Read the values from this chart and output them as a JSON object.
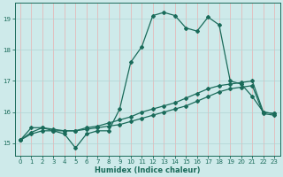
{
  "xlabel": "Humidex (Indice chaleur)",
  "background_color": "#ceeaea",
  "grid_color_h": "#b0d4d4",
  "grid_color_v": "#e8b0b0",
  "line_color": "#1a6b5a",
  "xlim": [
    -0.5,
    23.5
  ],
  "ylim": [
    14.6,
    19.5
  ],
  "yticks": [
    15,
    16,
    17,
    18,
    19
  ],
  "xticks": [
    0,
    1,
    2,
    3,
    4,
    5,
    6,
    7,
    8,
    9,
    10,
    11,
    12,
    13,
    14,
    15,
    16,
    17,
    18,
    19,
    20,
    21,
    22,
    23
  ],
  "series1_x": [
    0,
    1,
    2,
    3,
    4,
    5,
    6,
    7,
    8,
    9,
    10,
    11,
    12,
    13,
    14,
    15,
    16,
    17,
    18,
    19,
    20,
    21,
    22,
    23
  ],
  "series1_y": [
    15.1,
    15.5,
    15.5,
    15.4,
    15.3,
    14.85,
    15.3,
    15.4,
    15.4,
    16.1,
    17.6,
    18.1,
    19.1,
    19.2,
    19.1,
    18.7,
    18.6,
    19.05,
    18.8,
    17.0,
    16.9,
    16.5,
    16.0,
    15.95
  ],
  "series2_x": [
    0,
    1,
    2,
    3,
    4,
    5,
    6,
    7,
    8,
    9,
    10,
    11,
    12,
    13,
    14,
    15,
    16,
    17,
    18,
    19,
    20,
    21,
    22,
    23
  ],
  "series2_y": [
    15.1,
    15.35,
    15.5,
    15.45,
    15.4,
    15.4,
    15.5,
    15.55,
    15.65,
    15.75,
    15.85,
    16.0,
    16.1,
    16.2,
    16.3,
    16.45,
    16.6,
    16.75,
    16.85,
    16.9,
    16.95,
    17.0,
    16.0,
    15.95
  ],
  "series3_x": [
    0,
    1,
    2,
    3,
    4,
    5,
    6,
    7,
    8,
    9,
    10,
    11,
    12,
    13,
    14,
    15,
    16,
    17,
    18,
    19,
    20,
    21,
    22,
    23
  ],
  "series3_y": [
    15.1,
    15.3,
    15.4,
    15.4,
    15.4,
    15.4,
    15.45,
    15.5,
    15.55,
    15.6,
    15.7,
    15.8,
    15.9,
    16.0,
    16.1,
    16.2,
    16.35,
    16.5,
    16.65,
    16.75,
    16.8,
    16.85,
    15.95,
    15.9
  ]
}
